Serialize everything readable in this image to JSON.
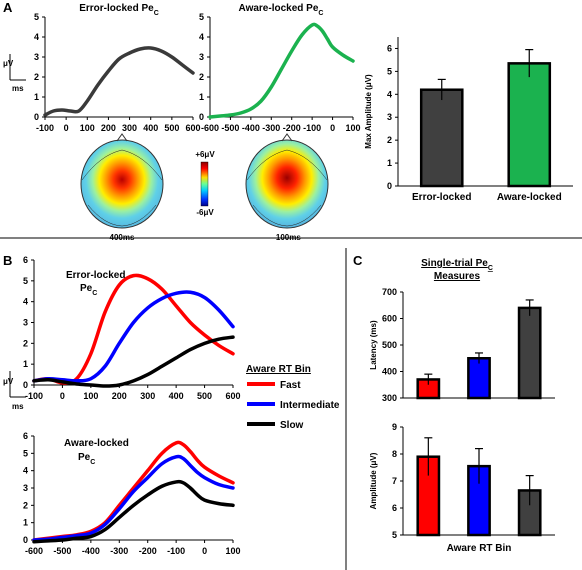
{
  "panel_labels": {
    "a": "A",
    "b": "B",
    "c": "C"
  },
  "scale_bar": {
    "y_unit": "μV",
    "x_unit": "ms"
  },
  "topomap": {
    "labels": [
      "400ms",
      "-100ms"
    ],
    "cbar_max": "+6μV",
    "cbar_min": "-6μV"
  },
  "colors": {
    "error_locked": "#3a3a3a",
    "aware_locked": "#1bb24f",
    "fast": "#ff0000",
    "intermediate": "#0000ff",
    "slow": "#000000",
    "bar_dark": "#404040"
  },
  "chart_data": [
    {
      "id": "a1",
      "type": "line",
      "title": "Error-locked Pe",
      "title_sub": "C",
      "x_ticks": [
        -100,
        0,
        100,
        200,
        300,
        400,
        500,
        600
      ],
      "y_ticks": [
        0,
        1,
        2,
        3,
        4,
        5
      ],
      "xlim": [
        -100,
        600
      ],
      "ylim": [
        0,
        5
      ],
      "series": [
        {
          "color": "#3a3a3a",
          "x": [
            -100,
            -60,
            -20,
            20,
            60,
            100,
            150,
            200,
            250,
            300,
            350,
            400,
            450,
            500,
            550,
            600
          ],
          "y": [
            0.1,
            0.3,
            0.35,
            0.3,
            0.3,
            0.8,
            1.6,
            2.3,
            2.9,
            3.2,
            3.4,
            3.45,
            3.3,
            3.0,
            2.6,
            2.2
          ]
        }
      ]
    },
    {
      "id": "a2",
      "type": "line",
      "title": "Aware-locked Pe",
      "title_sub": "C",
      "x_ticks": [
        -600,
        -500,
        -400,
        -300,
        -200,
        -100,
        0,
        100
      ],
      "y_ticks": [
        0,
        1,
        2,
        3,
        4,
        5
      ],
      "xlim": [
        -600,
        100
      ],
      "ylim": [
        0,
        5
      ],
      "series": [
        {
          "color": "#1bb24f",
          "x": [
            -600,
            -550,
            -500,
            -450,
            -400,
            -350,
            -300,
            -250,
            -200,
            -150,
            -100,
            -75,
            -50,
            -25,
            0,
            50,
            100
          ],
          "y": [
            0.0,
            0.05,
            0.1,
            0.2,
            0.4,
            0.8,
            1.5,
            2.4,
            3.3,
            4.1,
            4.6,
            4.55,
            4.3,
            3.9,
            3.5,
            3.1,
            2.8
          ]
        }
      ]
    },
    {
      "id": "a3",
      "type": "bar",
      "categories": [
        "Error-locked",
        "Aware-locked"
      ],
      "values": [
        4.2,
        5.35
      ],
      "errors": [
        0.45,
        0.6
      ],
      "colors": [
        "#404040",
        "#1bb24f"
      ],
      "ylabel": "Max Amplitude (μV)",
      "y_ticks": [
        0,
        1,
        2,
        3,
        4,
        5,
        6
      ],
      "ylim": [
        0,
        6.5
      ]
    },
    {
      "id": "b1",
      "type": "line",
      "title": "Error-locked",
      "title2": "Pe",
      "title2_sub": "C",
      "x_ticks": [
        -100,
        0,
        100,
        200,
        300,
        400,
        500,
        600
      ],
      "y_ticks": [
        0,
        1,
        2,
        3,
        4,
        5,
        6
      ],
      "xlim": [
        -100,
        600
      ],
      "ylim": [
        0,
        6
      ],
      "series": [
        {
          "color": "#ff0000",
          "x": [
            -100,
            -50,
            0,
            50,
            100,
            150,
            200,
            250,
            300,
            350,
            400,
            450,
            500,
            550,
            600
          ],
          "y": [
            0.2,
            0.3,
            0.1,
            0.3,
            1.5,
            3.5,
            4.8,
            5.25,
            5.1,
            4.6,
            3.8,
            3.0,
            2.4,
            1.9,
            1.5
          ]
        },
        {
          "color": "#0000ff",
          "x": [
            -100,
            -50,
            0,
            50,
            100,
            150,
            200,
            250,
            300,
            350,
            400,
            450,
            500,
            550,
            600
          ],
          "y": [
            0.2,
            0.3,
            0.25,
            0.2,
            0.3,
            0.9,
            2.0,
            3.0,
            3.7,
            4.15,
            4.4,
            4.45,
            4.2,
            3.6,
            2.8
          ]
        },
        {
          "color": "#000000",
          "x": [
            -100,
            -50,
            0,
            50,
            100,
            150,
            200,
            250,
            300,
            350,
            400,
            450,
            500,
            550,
            600
          ],
          "y": [
            0.2,
            0.25,
            0.15,
            0.05,
            0.0,
            -0.05,
            0.0,
            0.2,
            0.5,
            0.9,
            1.3,
            1.7,
            2.0,
            2.2,
            2.3
          ]
        }
      ]
    },
    {
      "id": "b2",
      "type": "line",
      "title": "Aware-locked",
      "title2": "Pe",
      "title2_sub": "C",
      "x_ticks": [
        -600,
        -500,
        -400,
        -300,
        -200,
        -100,
        0,
        100
      ],
      "y_ticks": [
        0,
        1,
        2,
        3,
        4,
        5,
        6
      ],
      "xlim": [
        -600,
        100
      ],
      "ylim": [
        0,
        6
      ],
      "series": [
        {
          "color": "#ff0000",
          "x": [
            -600,
            -550,
            -500,
            -450,
            -400,
            -350,
            -300,
            -250,
            -200,
            -150,
            -100,
            -75,
            -50,
            -25,
            0,
            50,
            100
          ],
          "y": [
            0.0,
            0.1,
            0.2,
            0.3,
            0.5,
            1.0,
            2.0,
            3.0,
            4.0,
            5.0,
            5.6,
            5.5,
            5.1,
            4.6,
            4.2,
            3.7,
            3.3
          ]
        },
        {
          "color": "#0000ff",
          "x": [
            -600,
            -550,
            -500,
            -450,
            -400,
            -350,
            -300,
            -250,
            -200,
            -150,
            -100,
            -75,
            -50,
            -25,
            0,
            50,
            100
          ],
          "y": [
            0.0,
            0.05,
            0.15,
            0.25,
            0.4,
            0.9,
            1.8,
            2.8,
            3.6,
            4.4,
            4.8,
            4.7,
            4.3,
            3.9,
            3.6,
            3.2,
            3.0
          ]
        },
        {
          "color": "#000000",
          "x": [
            -600,
            -550,
            -500,
            -450,
            -400,
            -350,
            -300,
            -250,
            -200,
            -150,
            -100,
            -75,
            -50,
            -25,
            0,
            50,
            100
          ],
          "y": [
            -0.1,
            -0.05,
            0.0,
            0.1,
            0.2,
            0.6,
            1.3,
            2.0,
            2.6,
            3.1,
            3.35,
            3.3,
            3.0,
            2.6,
            2.3,
            2.1,
            2.0
          ]
        }
      ]
    },
    {
      "id": "c1",
      "type": "bar",
      "title": "Single-trial Pe",
      "title_sub": "C",
      "title2": "Measures",
      "categories": [
        "Fast",
        "Intermediate",
        "Slow"
      ],
      "values": [
        370,
        450,
        640
      ],
      "errors": [
        20,
        20,
        30
      ],
      "colors": [
        "#ff0000",
        "#0000ff",
        "#404040"
      ],
      "ylabel": "Latency (ms)",
      "y_ticks": [
        300,
        400,
        500,
        600,
        700
      ],
      "ylim": [
        300,
        700
      ]
    },
    {
      "id": "c2",
      "type": "bar",
      "categories": [
        "Fast",
        "Intermediate",
        "Slow"
      ],
      "values": [
        7.9,
        7.55,
        6.65
      ],
      "errors": [
        0.7,
        0.65,
        0.55
      ],
      "colors": [
        "#ff0000",
        "#0000ff",
        "#404040"
      ],
      "ylabel": "Amplitude (μV)",
      "xlabel": "Aware RT Bin",
      "y_ticks": [
        5,
        6,
        7,
        8,
        9
      ],
      "ylim": [
        5,
        9
      ]
    }
  ],
  "legend": {
    "title": "Aware RT Bin",
    "items": [
      {
        "label": "Fast",
        "color": "#ff0000"
      },
      {
        "label": "Intermediate",
        "color": "#0000ff"
      },
      {
        "label": "Slow",
        "color": "#000000"
      }
    ]
  }
}
